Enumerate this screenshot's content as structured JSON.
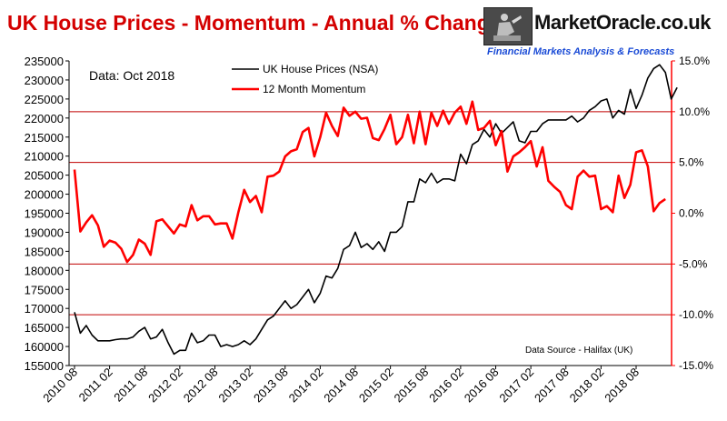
{
  "header": {
    "title": "UK House Prices - Momentum - Annual % Change",
    "logo_text": "MarketOracle.co.uk",
    "logo_sub": "Financial Markets Analysis & Forecasts",
    "logo_icon": "statue-icon"
  },
  "colors": {
    "title": "#d40000",
    "price_line": "#000000",
    "momentum_line": "#ff0000",
    "ref_lines": "#c00000",
    "logo_sub": "#1a4bd6"
  },
  "chart_data": {
    "type": "line",
    "annotation": "Data:  Oct 2018",
    "source": "Data Source - Halifax (UK)",
    "x_ticks": [
      "2010 08",
      "2011 02",
      "2011 08",
      "2012 02",
      "2012 08",
      "2013 02",
      "2013 08",
      "2014 02",
      "2014 08",
      "2015 02",
      "2015 08",
      "2016 02",
      "2016 08",
      "2017 02",
      "2017 08",
      "2018 02",
      "2018 08"
    ],
    "y_left": {
      "min": 155000,
      "max": 235000,
      "step": 5000,
      "ticks": [
        "235000",
        "230000",
        "225000",
        "220000",
        "215000",
        "210000",
        "205000",
        "200000",
        "195000",
        "190000",
        "185000",
        "180000",
        "175000",
        "170000",
        "165000",
        "160000",
        "155000"
      ]
    },
    "y_right": {
      "min": -15,
      "max": 15,
      "step": 5,
      "ticks": [
        "15.0%",
        "10.0%",
        "5.0%",
        "0.0%",
        "-5.0%",
        "-10.0%",
        "-15.0%"
      ]
    },
    "reference_lines_pct": [
      10,
      5,
      -5,
      -10
    ],
    "legend_position": "top-center",
    "series": [
      {
        "name": "UK House Prices (NSA)",
        "axis": "left",
        "values": [
          169000,
          163500,
          165500,
          163000,
          161500,
          161500,
          161500,
          161800,
          162000,
          162000,
          162500,
          164000,
          165000,
          162000,
          162500,
          164500,
          161000,
          158000,
          159000,
          159000,
          163500,
          161000,
          161500,
          163000,
          163000,
          160000,
          160500,
          160000,
          160500,
          161500,
          160500,
          162000,
          164500,
          167000,
          168000,
          170000,
          172000,
          170000,
          171000,
          173000,
          175000,
          171500,
          174000,
          178500,
          178000,
          180500,
          185500,
          186500,
          190000,
          186000,
          187000,
          185500,
          187500,
          185000,
          190000,
          190000,
          191500,
          198000,
          198000,
          204000,
          203000,
          205500,
          203000,
          204000,
          204000,
          203500,
          210500,
          208000,
          213000,
          214000,
          217000,
          215000,
          218500,
          216000,
          217500,
          219000,
          214000,
          213500,
          216500,
          216500,
          218500,
          219500,
          219500,
          219500,
          219500,
          220500,
          219000,
          220000,
          222000,
          223000,
          224500,
          225000,
          220000,
          222000,
          221000,
          227500,
          222500,
          226000,
          230500,
          233000,
          234000,
          232000,
          225000,
          228000
        ],
        "color": "#000000"
      },
      {
        "name": "12 Month Momentum",
        "axis": "right",
        "values": [
          4.3,
          -1.8,
          -0.9,
          -0.2,
          -1.2,
          -3.3,
          -2.7,
          -2.9,
          -3.5,
          -4.8,
          -4.1,
          -2.6,
          -3.0,
          -4.1,
          -0.8,
          -0.6,
          -1.3,
          -2.0,
          -1.1,
          -1.3,
          0.8,
          -0.7,
          -0.3,
          -0.3,
          -1.1,
          -1.0,
          -1.0,
          -2.5,
          0.1,
          2.3,
          1.1,
          1.7,
          0.1,
          3.6,
          3.7,
          4.1,
          5.6,
          6.1,
          6.3,
          8.0,
          8.4,
          5.6,
          7.5,
          9.9,
          8.6,
          7.6,
          10.4,
          9.6,
          10.0,
          9.3,
          9.4,
          7.4,
          7.2,
          8.3,
          9.7,
          6.8,
          7.5,
          9.7,
          6.9,
          10.0,
          6.8,
          9.9,
          8.6,
          10.1,
          8.8,
          9.9,
          10.5,
          8.8,
          11.0,
          8.2,
          8.4,
          9.1,
          6.7,
          8.1,
          4.1,
          5.6,
          6.0,
          6.5,
          7.1,
          4.6,
          6.5,
          3.2,
          2.6,
          2.1,
          0.8,
          0.4,
          3.6,
          4.2,
          3.6,
          3.7,
          0.4,
          0.7,
          0.1,
          3.7,
          1.5,
          2.8,
          6.0,
          6.2,
          4.6,
          0.2,
          1.0,
          1.4
        ],
        "color": "#ff0000"
      }
    ]
  }
}
